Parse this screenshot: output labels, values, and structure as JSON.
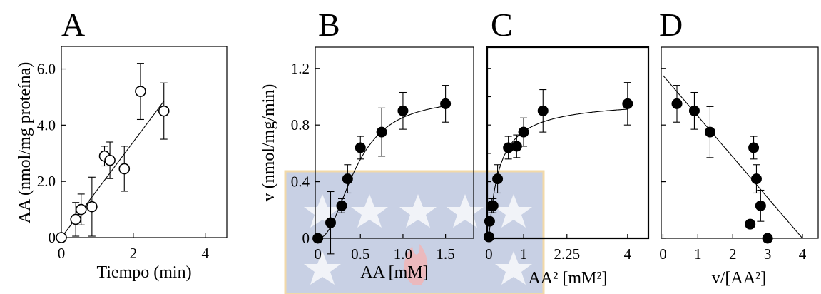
{
  "chart_data": [
    {
      "id": "A",
      "type": "scatter",
      "panel_label": "A",
      "xlabel": "Tiempo (min)",
      "ylabel": "AA (nmol/mg proteína)",
      "xlim": [
        0,
        4.6
      ],
      "ylim": [
        0,
        6.8
      ],
      "xticks": [
        0,
        2,
        4
      ],
      "xtick_labels": [
        "0",
        "2",
        "4"
      ],
      "yticks": [
        0,
        2,
        4,
        6
      ],
      "ytick_labels": [
        "0",
        "2.0",
        "4.0",
        "6.0"
      ],
      "marker": "open-circle",
      "points": [
        {
          "x": 0,
          "y": 0,
          "err": 0
        },
        {
          "x": 0.4,
          "y": 0.65,
          "err": 0.6
        },
        {
          "x": 0.55,
          "y": 1.0,
          "err": 0.55
        },
        {
          "x": 0.85,
          "y": 1.1,
          "err": 1.05
        },
        {
          "x": 1.2,
          "y": 2.9,
          "err": 0.35
        },
        {
          "x": 1.35,
          "y": 2.75,
          "err": 0.65
        },
        {
          "x": 1.75,
          "y": 2.45,
          "err": 0.8
        },
        {
          "x": 2.2,
          "y": 5.2,
          "err": 1.0
        },
        {
          "x": 2.85,
          "y": 4.5,
          "err": 1.0
        }
      ],
      "fit": {
        "kind": "line",
        "x": [
          0,
          2.85
        ],
        "y": [
          0,
          4.85
        ]
      }
    },
    {
      "id": "B",
      "type": "scatter",
      "panel_label": "B",
      "xlabel": "AA [mM]",
      "ylabel": "v (nmol/mg/min)",
      "xlim": [
        -0.03,
        1.83
      ],
      "ylim": [
        0,
        1.35
      ],
      "xticks": [
        0,
        0.5,
        1.0,
        1.5
      ],
      "xtick_labels": [
        "0",
        "0.5",
        "1.0",
        "1.5"
      ],
      "yticks": [
        0,
        0.4,
        0.8,
        1.2
      ],
      "ytick_labels": [
        "0",
        "0.4",
        "0.8",
        "1.2"
      ],
      "marker": "filled-circle",
      "points": [
        {
          "x": 0,
          "y": 0,
          "err": 0
        },
        {
          "x": 0.15,
          "y": 0.11,
          "err": 0.22
        },
        {
          "x": 0.28,
          "y": 0.23,
          "err": 0.05
        },
        {
          "x": 0.35,
          "y": 0.42,
          "err": 0.1
        },
        {
          "x": 0.5,
          "y": 0.64,
          "err": 0.08
        },
        {
          "x": 0.75,
          "y": 0.75,
          "err": 0.17
        },
        {
          "x": 1.0,
          "y": 0.9,
          "err": 0.13
        },
        {
          "x": 1.5,
          "y": 0.95,
          "err": 0.13
        }
      ],
      "fit": {
        "kind": "hill",
        "vmax": 1.0,
        "k": 0.45,
        "n": 2.2
      }
    },
    {
      "id": "C",
      "type": "scatter",
      "panel_label": "C",
      "xlabel": "AA² [mM²]",
      "xlim": [
        -0.05,
        4.6
      ],
      "ylim": [
        0,
        1.35
      ],
      "xticks": [
        0,
        1,
        2.25,
        4
      ],
      "xtick_labels": [
        "0",
        "1",
        "2.25",
        "4"
      ],
      "yticks": [
        0,
        0.2,
        0.4,
        0.6,
        0.8,
        1.0,
        1.2
      ],
      "marker": "filled-circle",
      "points": [
        {
          "x": 0.0,
          "y": 0.01,
          "err": 0
        },
        {
          "x": 0.02,
          "y": 0.12,
          "err": 0
        },
        {
          "x": 0.08,
          "y": 0.23,
          "err": 0.05
        },
        {
          "x": 0.12,
          "y": 0.23,
          "err": 0.05
        },
        {
          "x": 0.25,
          "y": 0.42,
          "err": 0.1
        },
        {
          "x": 0.56,
          "y": 0.64,
          "err": 0.08
        },
        {
          "x": 0.8,
          "y": 0.65,
          "err": 0.08
        },
        {
          "x": 1.0,
          "y": 0.75,
          "err": 0.1
        },
        {
          "x": 1.56,
          "y": 0.9,
          "err": 0.15
        },
        {
          "x": 4.0,
          "y": 0.95,
          "err": 0.15
        }
      ],
      "fit": {
        "kind": "hyperbola",
        "vmax": 0.98,
        "k": 0.3
      }
    },
    {
      "id": "D",
      "type": "scatter",
      "panel_label": "D",
      "xlabel": "v/[AA²]",
      "xlim": [
        -0.05,
        4.45
      ],
      "ylim": [
        0,
        1.35
      ],
      "xticks": [
        0,
        1,
        2,
        3,
        4
      ],
      "xtick_labels": [
        "0",
        "1",
        "2",
        "3",
        "4"
      ],
      "yticks": [
        0,
        0.4,
        0.8,
        1.2
      ],
      "marker": "filled-circle",
      "points": [
        {
          "x": 0.4,
          "y": 0.95,
          "err": 0.13
        },
        {
          "x": 0.9,
          "y": 0.9,
          "err": 0.13
        },
        {
          "x": 1.35,
          "y": 0.75,
          "err": 0.18
        },
        {
          "x": 2.5,
          "y": 0.1,
          "err": 0
        },
        {
          "x": 2.6,
          "y": 0.64,
          "err": 0.08
        },
        {
          "x": 2.68,
          "y": 0.42,
          "err": 0.1
        },
        {
          "x": 2.8,
          "y": 0.23,
          "err": 0.11
        },
        {
          "x": 3.0,
          "y": 0.0,
          "err": 0.0
        }
      ],
      "fit": {
        "kind": "line",
        "x": [
          0,
          4.0
        ],
        "y": [
          1.15,
          0.0
        ]
      }
    }
  ]
}
